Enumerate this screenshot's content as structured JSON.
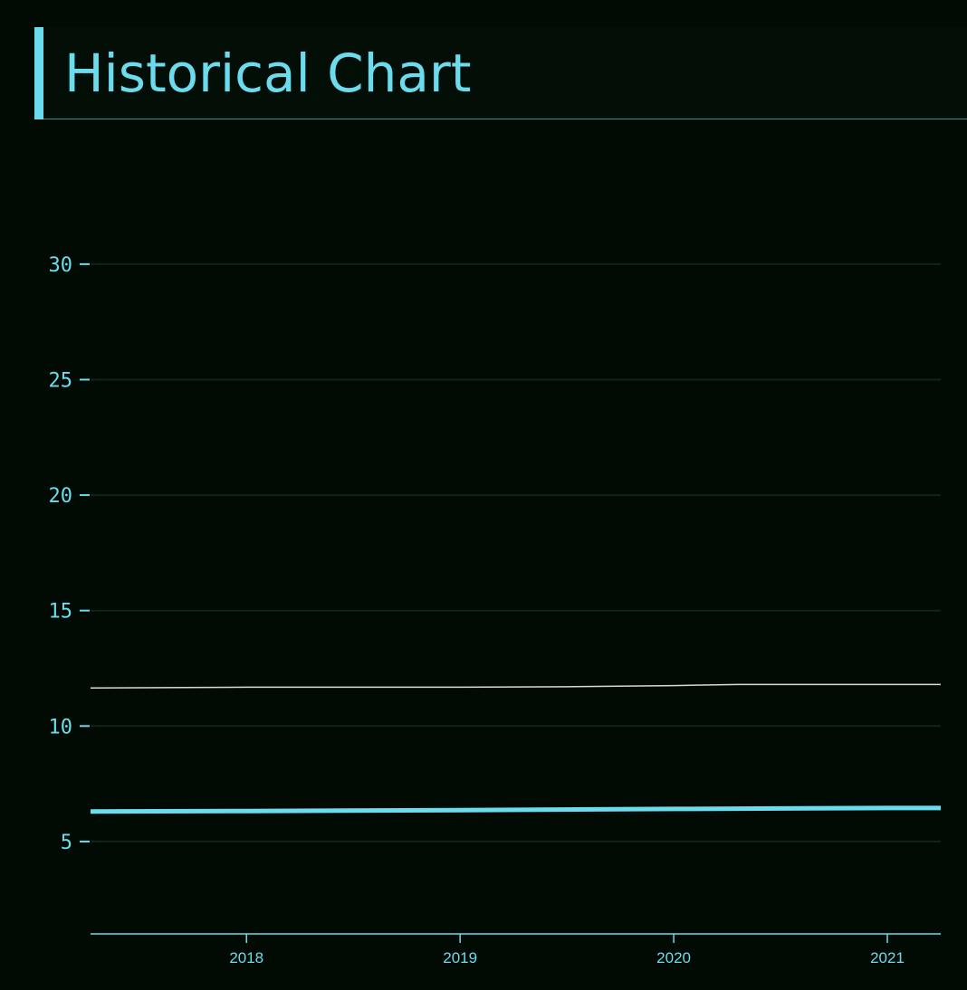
{
  "header": {
    "title": "Historical Chart"
  },
  "colors": {
    "background": "#010b04",
    "accent": "#6bdcee",
    "grid": "#10241c",
    "secondary_line": "#d8d8d8"
  },
  "chart_data": {
    "type": "line",
    "title": "Historical Chart",
    "xlabel": "",
    "ylabel": "",
    "x_ticks": [
      2018,
      2019,
      2020,
      2021
    ],
    "xlim": [
      2017.27,
      2021.25
    ],
    "y_ticks": [
      5,
      10,
      15,
      20,
      25,
      30
    ],
    "ylim": [
      1,
      33.6
    ],
    "grid": true,
    "legend": "none",
    "series": [
      {
        "color": "#d8d8d8",
        "width": 1.5,
        "x": [
          2017.27,
          2018,
          2019,
          2019.5,
          2020,
          2020.3,
          2021,
          2021.25
        ],
        "y": [
          11.65,
          11.68,
          11.68,
          11.7,
          11.75,
          11.8,
          11.8,
          11.8
        ]
      },
      {
        "color": "#6bdcee",
        "width": 5,
        "x": [
          2017.27,
          2018,
          2019,
          2020,
          2021,
          2021.25
        ],
        "y": [
          6.3,
          6.32,
          6.36,
          6.41,
          6.45,
          6.45
        ]
      }
    ]
  }
}
